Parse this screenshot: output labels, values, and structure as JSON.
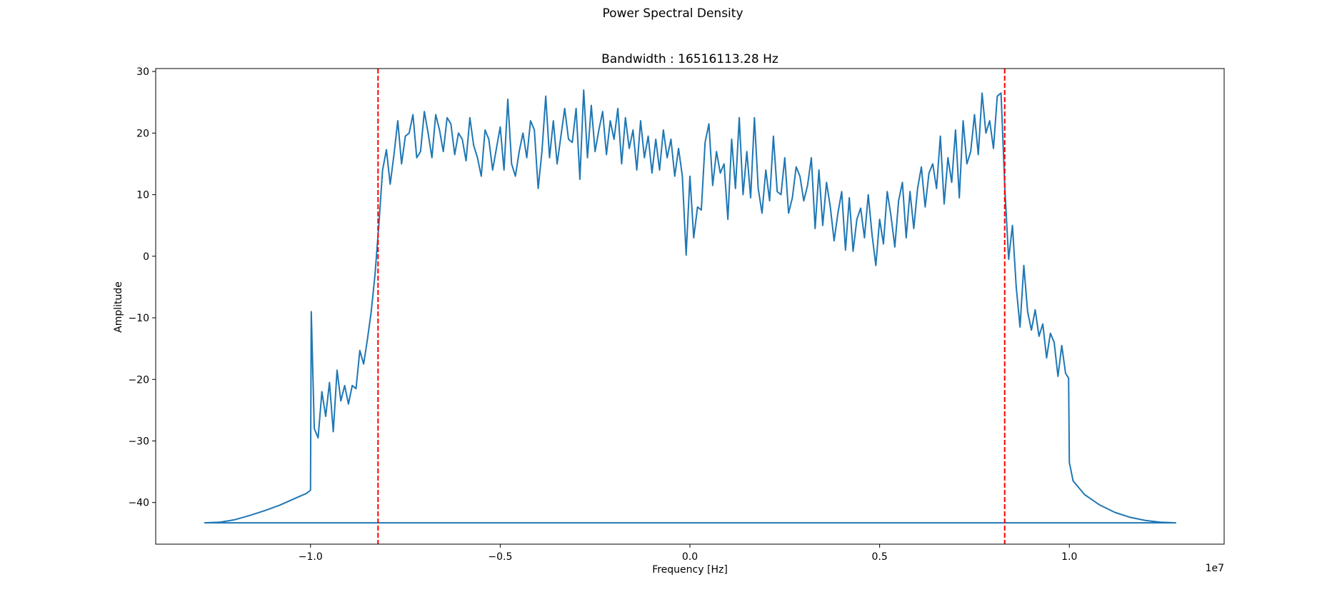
{
  "chart_data": {
    "type": "line",
    "title": "Power Spectral Density",
    "subtitle": "Bandwidth : 16516113.28 Hz",
    "xlabel": "Frequency [Hz]",
    "ylabel": "Amplitude",
    "x_offset_label": "1e7",
    "xlim": [
      -14080000.0,
      14080000.0
    ],
    "ylim": [
      -46.76,
      30.48
    ],
    "xticks": [
      {
        "value": -10000000.0,
        "label": "−1.0"
      },
      {
        "value": -5000000.0,
        "label": "−0.5"
      },
      {
        "value": 0,
        "label": "0.0"
      },
      {
        "value": 5000000.0,
        "label": "0.5"
      },
      {
        "value": 10000000.0,
        "label": "1.0"
      }
    ],
    "yticks": [
      {
        "value": -40,
        "label": "−40"
      },
      {
        "value": -30,
        "label": "−30"
      },
      {
        "value": -20,
        "label": "−20"
      },
      {
        "value": -10,
        "label": "−10"
      },
      0,
      10,
      20,
      30
    ],
    "grid": false,
    "series": [
      {
        "color": "#1f77b4",
        "x": [
          -12800000.0,
          -12400000.0,
          -12000000.0,
          -11600000.0,
          -11200000.0,
          -10800000.0,
          -10400000.0,
          -10100000.0,
          -10000000.0,
          -9980000.0,
          -9900000.0,
          -9800000.0,
          -9700000.0,
          -9600000.0,
          -9500000.0,
          -9400000.0,
          -9300000.0,
          -9200000.0,
          -9100000.0,
          -9000000.0,
          -8900000.0,
          -8800000.0,
          -8700000.0,
          -8600000.0,
          -8500000.0,
          -8400000.0,
          -8300000.0,
          -8200000.0,
          -8100000.0,
          -8000000.0,
          -7900000.0,
          -7800000.0,
          -7700000.0,
          -7600000.0,
          -7500000.0,
          -7400000.0,
          -7300000.0,
          -7200000.0,
          -7100000.0,
          -7000000.0,
          -6900000.0,
          -6800000.0,
          -6700000.0,
          -6600000.0,
          -6500000.0,
          -6400000.0,
          -6300000.0,
          -6200000.0,
          -6100000.0,
          -6000000.0,
          -5900000.0,
          -5800000.0,
          -5700000.0,
          -5600000.0,
          -5500000.0,
          -5400000.0,
          -5300000.0,
          -5200000.0,
          -5100000.0,
          -5000000.0,
          -4900000.0,
          -4800000.0,
          -4700000.0,
          -4600000.0,
          -4500000.0,
          -4400000.0,
          -4300000.0,
          -4200000.0,
          -4100000.0,
          -4000000.0,
          -3900000.0,
          -3800000.0,
          -3700000.0,
          -3600000.0,
          -3500000.0,
          -3400000.0,
          -3300000.0,
          -3200000.0,
          -3100000.0,
          -3000000.0,
          -2900000.0,
          -2800000.0,
          -2700000.0,
          -2600000.0,
          -2500000.0,
          -2400000.0,
          -2300000.0,
          -2200000.0,
          -2100000.0,
          -2000000.0,
          -1900000.0,
          -1800000.0,
          -1700000.0,
          -1600000.0,
          -1500000.0,
          -1400000.0,
          -1300000.0,
          -1200000.0,
          -1100000.0,
          -1000000.0,
          -900000.0,
          -800000.0,
          -700000.0,
          -600000.0,
          -500000.0,
          -400000.0,
          -300000.0,
          -200000.0,
          -100000.0,
          0,
          100000.0,
          200000.0,
          300000.0,
          400000.0,
          500000.0,
          600000.0,
          700000.0,
          800000.0,
          900000.0,
          1000000.0,
          1100000.0,
          1200000.0,
          1300000.0,
          1400000.0,
          1500000.0,
          1600000.0,
          1700000.0,
          1800000.0,
          1900000.0,
          2000000.0,
          2100000.0,
          2200000.0,
          2300000.0,
          2400000.0,
          2500000.0,
          2600000.0,
          2700000.0,
          2800000.0,
          2900000.0,
          3000000.0,
          3100000.0,
          3200000.0,
          3300000.0,
          3400000.0,
          3500000.0,
          3600000.0,
          3700000.0,
          3800000.0,
          3900000.0,
          4000000.0,
          4100000.0,
          4200000.0,
          4300000.0,
          4400000.0,
          4500000.0,
          4600000.0,
          4700000.0,
          4800000.0,
          4900000.0,
          5000000.0,
          5100000.0,
          5200000.0,
          5300000.0,
          5400000.0,
          5500000.0,
          5600000.0,
          5700000.0,
          5800000.0,
          5900000.0,
          6000000.0,
          6100000.0,
          6200000.0,
          6300000.0,
          6400000.0,
          6500000.0,
          6600000.0,
          6700000.0,
          6800000.0,
          6900000.0,
          7000000.0,
          7100000.0,
          7200000.0,
          7300000.0,
          7400000.0,
          7500000.0,
          7600000.0,
          7700000.0,
          7800000.0,
          7900000.0,
          8000000.0,
          8100000.0,
          8200000.0,
          8300000.0,
          8400000.0,
          8500000.0,
          8600000.0,
          8700000.0,
          8800000.0,
          8900000.0,
          9000000.0,
          9100000.0,
          9200000.0,
          9300000.0,
          9400000.0,
          9500000.0,
          9600000.0,
          9700000.0,
          9800000.0,
          9900000.0,
          9980000.0,
          10000000.0,
          10100000.0,
          10400000.0,
          10800000.0,
          11200000.0,
          11600000.0,
          12000000.0,
          12400000.0,
          12800000.0,
          -12800000.0
        ],
        "values": [
          -43.3,
          -43.2,
          -42.8,
          -42.1,
          -41.3,
          -40.4,
          -39.3,
          -38.5,
          -38.0,
          -9,
          -28,
          -29.5,
          -22,
          -26,
          -20.5,
          -28.5,
          -18.5,
          -23.5,
          -21,
          -24,
          -21,
          -21.5,
          -15.3,
          -17.5,
          -13.5,
          -9,
          -3,
          5,
          14,
          17.3,
          11.7,
          16.5,
          22,
          15,
          19.5,
          20,
          23,
          16,
          17,
          23.5,
          20,
          16,
          23,
          20.5,
          17,
          22.5,
          21.5,
          16.5,
          20,
          19,
          15.5,
          22.5,
          18,
          16,
          13,
          20.5,
          19,
          14,
          17.5,
          21,
          14,
          25.5,
          15,
          13,
          17,
          20,
          16,
          22,
          20.5,
          11,
          17,
          26,
          16,
          22,
          15,
          19.5,
          24,
          19,
          18.5,
          24,
          12.5,
          27,
          16,
          24.5,
          17,
          20.5,
          23.5,
          16.5,
          22,
          19,
          24,
          15,
          22.5,
          17.5,
          20.5,
          14,
          22,
          16,
          19.5,
          13.5,
          19,
          14,
          20.5,
          16,
          19,
          13,
          17.5,
          13,
          0.2,
          13,
          3,
          8,
          7.5,
          18.5,
          21.5,
          11.5,
          17,
          13.5,
          15,
          6,
          19,
          11,
          22.5,
          10,
          17,
          9.5,
          22.5,
          11,
          7,
          14,
          9,
          19.5,
          10.5,
          10,
          16,
          7,
          9.5,
          14.5,
          13,
          9,
          11.5,
          16,
          4.5,
          14,
          5,
          12,
          8,
          2.5,
          7,
          10.5,
          1,
          9.5,
          0.8,
          6,
          7.8,
          3,
          10,
          3.5,
          -1.5,
          6,
          2,
          10.5,
          6.5,
          1.5,
          9,
          12,
          3,
          10.5,
          4.5,
          11,
          14.5,
          8,
          13.5,
          15,
          11,
          19.5,
          8.5,
          16,
          12,
          20.5,
          9.5,
          22,
          15,
          17,
          23,
          16.5,
          26.5,
          20,
          22,
          17.5,
          26,
          26.5,
          11,
          -0.5,
          5,
          -5,
          -11.5,
          -1.5,
          -9,
          -12,
          -8.7,
          -13,
          -11,
          -16.5,
          -12.5,
          -14,
          -19.5,
          -14.5,
          -19,
          -19.8,
          -33.5,
          -36.5,
          -38.7,
          -40.4,
          -41.6,
          -42.4,
          -42.9,
          -43.2,
          -43.3,
          -43.3
        ]
      }
    ],
    "vlines": {
      "color": "#ff0000",
      "x": [
        -8220000.0,
        8296000.0
      ]
    }
  }
}
